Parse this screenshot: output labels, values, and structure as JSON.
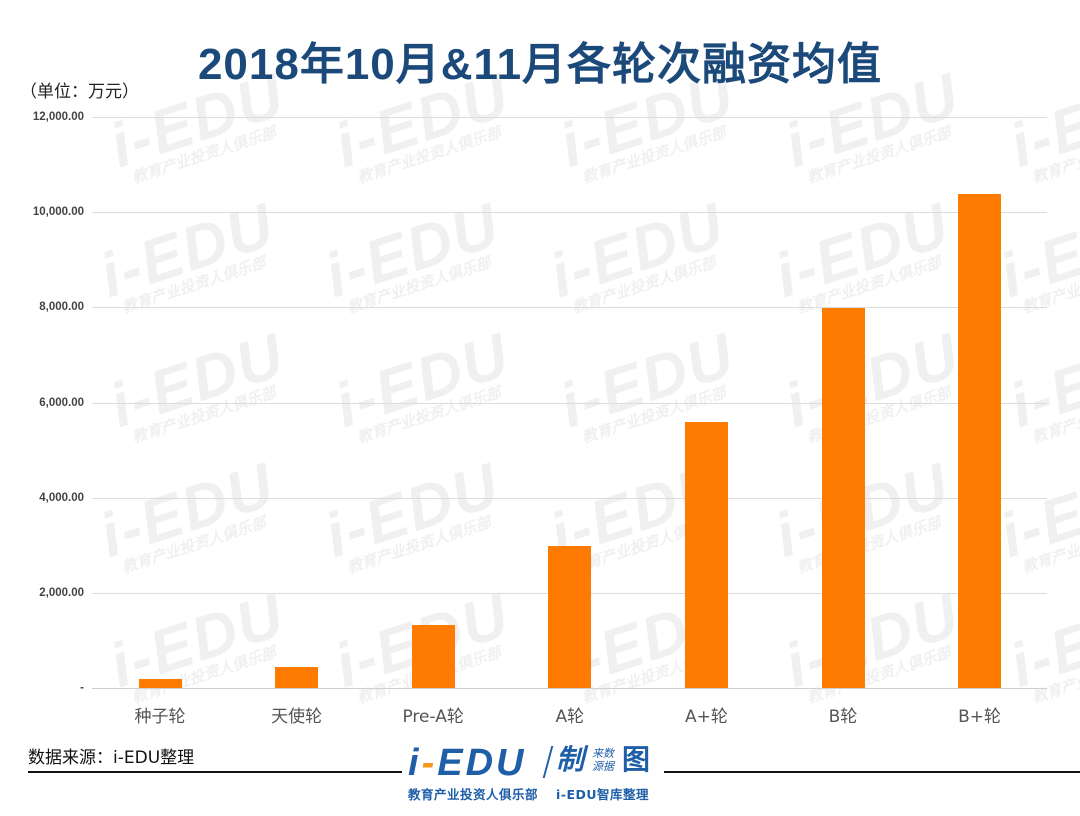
{
  "title": "2018年10月&11月各轮次融资均值",
  "unit": "（单位：万元）",
  "source": "数据来源：i-EDU整理",
  "watermark": {
    "big": "i-EDU",
    "small": "教育产业投资人俱乐部"
  },
  "logo": {
    "prefix": "i",
    "dash": "-",
    "main": "EDU",
    "zhi": "制",
    "src_line1": "来数",
    "src_line2": "源据",
    "tu": "图",
    "sub_left": "教育产业投资人俱乐部",
    "sub_right": "i-EDU智库整理"
  },
  "colors": {
    "bar": "#ff7a00",
    "title": "#1b4a7a",
    "logo": "#1f5fa8",
    "logo_accent": "#f39a1e"
  },
  "y_ticks": [
    "-",
    "2,000.00",
    "4,000.00",
    "6,000.00",
    "8,000.00",
    "10,000.00",
    "12,000.00"
  ],
  "chart_data": {
    "type": "bar",
    "title": "2018年10月&11月各轮次融资均值",
    "xlabel": "",
    "ylabel": "（单位：万元）",
    "categories": [
      "种子轮",
      "天使轮",
      "Pre-A轮",
      "A轮",
      "A+轮",
      "B轮",
      "B+轮"
    ],
    "values": [
      190,
      440,
      1330,
      2990,
      5600,
      7980,
      10380
    ],
    "ylim": [
      0,
      12000
    ],
    "y_tick_values": [
      0,
      2000,
      4000,
      6000,
      8000,
      10000,
      12000
    ],
    "grid": true,
    "legend": null,
    "bar_color": "#ff7a00"
  }
}
